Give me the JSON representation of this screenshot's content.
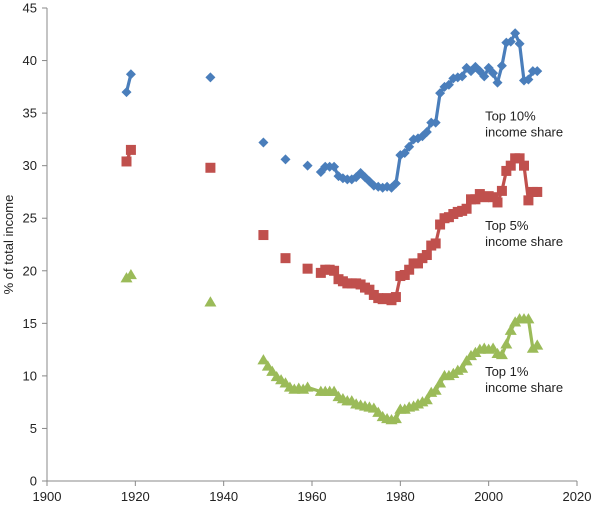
{
  "chart_data": {
    "type": "line",
    "title": "",
    "xlabel": "",
    "ylabel": "% of total income",
    "xlim": [
      1900,
      2020
    ],
    "ylim": [
      0,
      45
    ],
    "xticks": [
      1900,
      1920,
      1940,
      1960,
      1980,
      2000,
      2020
    ],
    "yticks": [
      0,
      5,
      10,
      15,
      20,
      25,
      30,
      35,
      40,
      45
    ],
    "grid": false,
    "legend": "none",
    "series": [
      {
        "label": "Top 10% income share",
        "color": "#4a7ebb",
        "marker": "diamond",
        "label_lines": [
          "Top 10%",
          "income share"
        ],
        "label_anchor": [
          2001,
          34.3
        ],
        "x": [
          1918,
          1919,
          1937,
          1949,
          1954,
          1959,
          1962,
          1963,
          1964,
          1965,
          1966,
          1967,
          1968,
          1969,
          1970,
          1971,
          1972,
          1973,
          1974,
          1975,
          1976,
          1977,
          1978,
          1979,
          1980,
          1981,
          1982,
          1983,
          1984,
          1985,
          1986,
          1987,
          1988,
          1989,
          1990,
          1991,
          1992,
          1993,
          1994,
          1995,
          1996,
          1997,
          1998,
          1999,
          2000,
          2001,
          2002,
          2003,
          2004,
          2005,
          2006,
          2007,
          2008,
          2009,
          2010,
          2011
        ],
        "y": [
          37.0,
          38.7,
          38.4,
          32.2,
          30.6,
          30.0,
          29.4,
          29.9,
          29.9,
          29.9,
          29.0,
          28.8,
          28.7,
          28.7,
          28.9,
          29.3,
          28.9,
          28.5,
          28.1,
          28.0,
          27.9,
          28.0,
          27.9,
          28.3,
          31.0,
          31.2,
          31.8,
          32.5,
          32.6,
          32.8,
          33.2,
          34.1,
          34.1,
          36.9,
          37.5,
          37.7,
          38.3,
          38.4,
          38.5,
          39.3,
          39.0,
          39.4,
          39.0,
          38.5,
          39.3,
          38.8,
          37.9,
          39.5,
          41.7,
          41.8,
          42.6,
          41.6,
          38.1,
          38.2,
          39.0,
          39.0
        ],
        "break_after_index": [
          1,
          2,
          3,
          4,
          5
        ]
      },
      {
        "label": "Top 5% income share",
        "color": "#c0504d",
        "marker": "square",
        "label_lines": [
          "Top 5%",
          "income share"
        ],
        "label_anchor": [
          2001,
          23.9
        ],
        "x": [
          1918,
          1919,
          1937,
          1949,
          1954,
          1959,
          1962,
          1963,
          1964,
          1965,
          1966,
          1967,
          1968,
          1969,
          1970,
          1971,
          1972,
          1973,
          1974,
          1975,
          1976,
          1977,
          1978,
          1979,
          1980,
          1981,
          1982,
          1983,
          1984,
          1985,
          1986,
          1987,
          1988,
          1989,
          1990,
          1991,
          1992,
          1993,
          1994,
          1995,
          1996,
          1997,
          1998,
          1999,
          2000,
          2001,
          2002,
          2003,
          2004,
          2005,
          2006,
          2007,
          2008,
          2009,
          2010,
          2011
        ],
        "y": [
          30.4,
          31.5,
          29.8,
          23.4,
          21.2,
          20.2,
          19.8,
          20.1,
          20.1,
          20.0,
          19.2,
          19.0,
          18.8,
          18.8,
          18.8,
          18.7,
          18.4,
          18.2,
          17.7,
          17.4,
          17.3,
          17.4,
          17.2,
          17.5,
          19.5,
          19.6,
          20.1,
          20.7,
          20.7,
          21.2,
          21.5,
          22.4,
          22.6,
          24.4,
          25.0,
          25.1,
          25.4,
          25.6,
          25.7,
          25.9,
          26.8,
          26.8,
          27.3,
          27.0,
          27.1,
          27.0,
          26.5,
          27.6,
          29.5,
          30.0,
          30.7,
          30.7,
          30.0,
          26.7,
          27.5,
          27.5
        ],
        "break_after_index": [
          1,
          2,
          3,
          4,
          5
        ]
      },
      {
        "label": "Top 1% income share",
        "color": "#9bbb59",
        "marker": "triangle",
        "label_lines": [
          "Top 1%",
          "income share"
        ],
        "label_anchor": [
          2001,
          10.0
        ],
        "x": [
          1918,
          1919,
          1937,
          1949,
          1950,
          1951,
          1952,
          1953,
          1954,
          1955,
          1956,
          1957,
          1958,
          1959,
          1962,
          1963,
          1964,
          1965,
          1966,
          1967,
          1968,
          1969,
          1970,
          1971,
          1972,
          1973,
          1974,
          1975,
          1976,
          1977,
          1978,
          1979,
          1980,
          1981,
          1982,
          1983,
          1984,
          1985,
          1986,
          1987,
          1988,
          1989,
          1990,
          1991,
          1992,
          1993,
          1994,
          1995,
          1996,
          1997,
          1998,
          1999,
          2000,
          2001,
          2002,
          2003,
          2004,
          2005,
          2006,
          2007,
          2008,
          2009,
          2010,
          2011
        ],
        "y": [
          19.3,
          19.6,
          17.0,
          11.5,
          10.9,
          10.4,
          9.9,
          9.6,
          9.3,
          8.9,
          8.7,
          8.8,
          8.7,
          8.9,
          8.5,
          8.5,
          8.5,
          8.5,
          8.0,
          7.8,
          7.6,
          7.6,
          7.3,
          7.2,
          7.1,
          7.0,
          6.9,
          6.5,
          6.1,
          5.9,
          5.8,
          5.9,
          6.8,
          6.8,
          7.0,
          7.1,
          7.3,
          7.5,
          7.7,
          8.4,
          8.6,
          9.3,
          10.0,
          10.0,
          10.2,
          10.5,
          10.7,
          11.4,
          11.9,
          12.2,
          12.5,
          12.6,
          12.5,
          12.6,
          12.1,
          12.0,
          13.0,
          14.3,
          15.1,
          15.4,
          15.4,
          15.4,
          12.6,
          12.9
        ],
        "break_after_index": [
          1,
          2,
          3
        ]
      }
    ]
  }
}
